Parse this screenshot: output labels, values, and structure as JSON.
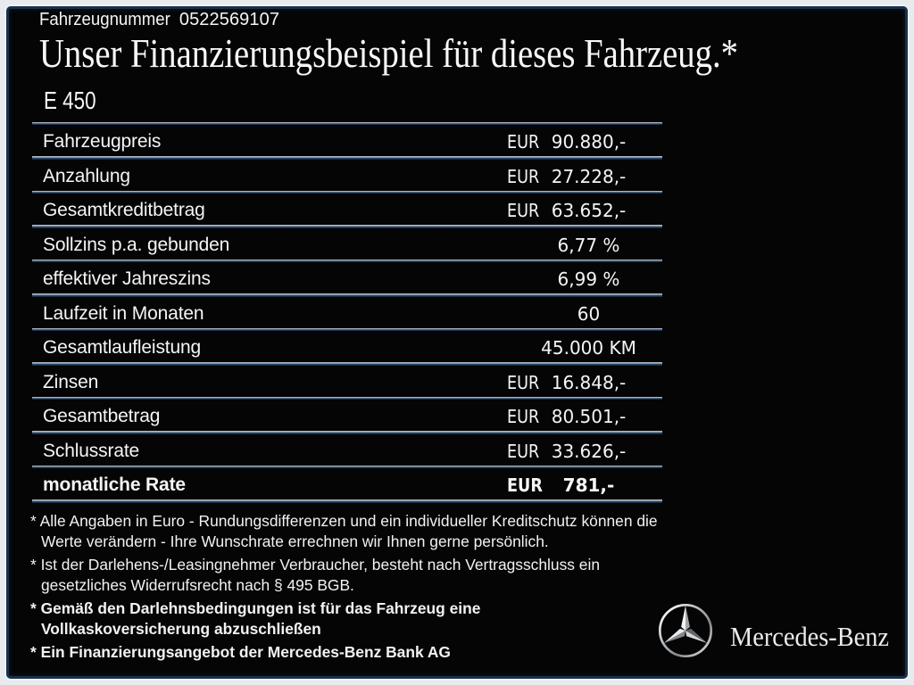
{
  "header": {
    "vehicle_number_label": "Fahrzeugnummer",
    "vehicle_number": "0522569107",
    "title": "Unser Finanzierungsbeispiel für dieses Fahrzeug.*",
    "model": "E 450"
  },
  "table": {
    "rows": [
      {
        "label": "Fahrzeugpreis",
        "currency": "EUR",
        "value": "90.880,-",
        "bold": false
      },
      {
        "label": "Anzahlung",
        "currency": "EUR",
        "value": "27.228,-",
        "bold": false
      },
      {
        "label": "Gesamtkreditbetrag",
        "currency": "EUR",
        "value": "63.652,-",
        "bold": false
      },
      {
        "label": "Sollzins p.a. gebunden",
        "currency": "",
        "value": "6,77 %",
        "bold": false
      },
      {
        "label": "effektiver Jahreszins",
        "currency": "",
        "value": "6,99 %",
        "bold": false
      },
      {
        "label": "Laufzeit in Monaten",
        "currency": "",
        "value": "60",
        "bold": false
      },
      {
        "label": "Gesamtlaufleistung",
        "currency": "",
        "value": "45.000 KM",
        "bold": false
      },
      {
        "label": "Zinsen",
        "currency": "EUR",
        "value": "16.848,-",
        "bold": false
      },
      {
        "label": "Gesamtbetrag",
        "currency": "EUR",
        "value": "80.501,-",
        "bold": false
      },
      {
        "label": "Schlussrate",
        "currency": "EUR",
        "value": "33.626,-",
        "bold": false
      },
      {
        "label": "monatliche Rate",
        "currency": "EUR",
        "value": "781,-",
        "bold": true
      }
    ]
  },
  "footnotes": [
    {
      "text": "* Alle Angaben in Euro - Rundungsdifferenzen und ein individueller Kreditschutz können die\nWerte verändern - Ihre Wunschrate errechnen wir Ihnen gerne persönlich.",
      "bold": false
    },
    {
      "text": "* Ist der Darlehens-/Leasingnehmer Verbraucher, besteht nach Vertragsschluss ein\ngesetzliches Widerrufsrecht nach § 495 BGB.",
      "bold": false
    },
    {
      "text": "* Gemäß den Darlehnsbedingungen ist für das Fahrzeug eine\nVollkaskoversicherung abzuschließen",
      "bold": true
    },
    {
      "text": "* Ein Finanzierungsangebot der Mercedes-Benz Bank AG",
      "bold": true
    }
  ],
  "logo": {
    "brand": "Mercedes-Benz",
    "star_icon": "mercedes-star"
  },
  "colors": {
    "page_background": "#e8ebee",
    "panel_background": "#050506",
    "panel_edge_navy": "#1a3049",
    "divider_light": "#d9dee3",
    "divider_blue": "#2d5279",
    "text": "#f5f5f5"
  }
}
